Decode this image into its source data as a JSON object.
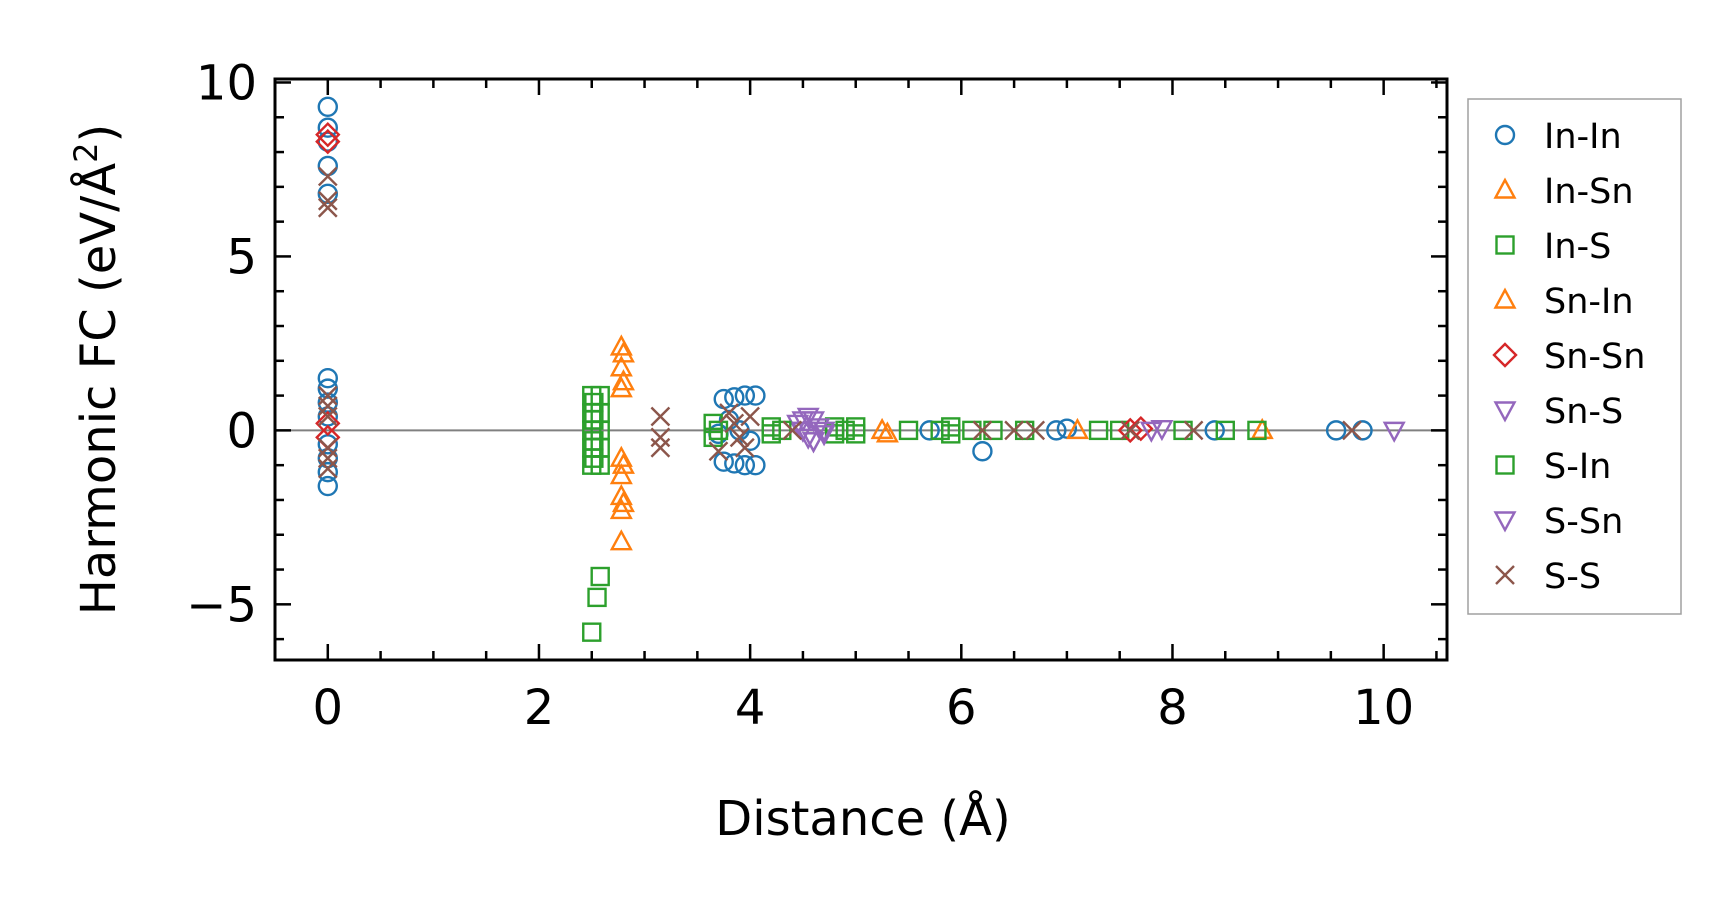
{
  "chart_data": {
    "type": "scatter",
    "title": "",
    "xlabel": "Distance (Å)",
    "ylabel": "Harmonic FC (eV/Å",
    "ylabel_superscript": "2",
    "ylabel_suffix": ")",
    "xlim": [
      -0.5,
      10.6
    ],
    "ylim": [
      -6.6,
      10.1
    ],
    "xticks": [
      0,
      2,
      4,
      6,
      8,
      10
    ],
    "xtick_labels": [
      "0",
      "2",
      "4",
      "6",
      "8",
      "10"
    ],
    "yticks": [
      -5,
      0,
      5,
      10
    ],
    "ytick_labels": [
      "−5",
      "0",
      "5",
      "10"
    ],
    "grid": false,
    "zero_line": true,
    "legend_position": "right-outside",
    "series": [
      {
        "name": "In-In",
        "marker": "circle",
        "color": "#1f77b4",
        "points": [
          [
            0,
            9.3
          ],
          [
            0,
            8.7
          ],
          [
            0,
            8.3
          ],
          [
            0,
            7.6
          ],
          [
            0,
            6.8
          ],
          [
            0,
            1.5
          ],
          [
            0,
            1.2
          ],
          [
            0,
            0.8
          ],
          [
            0,
            0.4
          ],
          [
            0,
            -0.4
          ],
          [
            0,
            -0.8
          ],
          [
            0,
            -1.2
          ],
          [
            0,
            -1.6
          ],
          [
            3.75,
            0.9
          ],
          [
            3.85,
            0.95
          ],
          [
            3.95,
            1.0
          ],
          [
            4.05,
            1.0
          ],
          [
            3.75,
            -0.9
          ],
          [
            3.85,
            -0.95
          ],
          [
            3.95,
            -1.0
          ],
          [
            4.05,
            -1.0
          ],
          [
            3.8,
            0.3
          ],
          [
            3.9,
            0.0
          ],
          [
            4.0,
            -0.3
          ],
          [
            3.7,
            -0.1
          ],
          [
            5.7,
            0.0
          ],
          [
            6.2,
            -0.6
          ],
          [
            6.9,
            0.0
          ],
          [
            7.0,
            0.05
          ],
          [
            8.4,
            0.0
          ],
          [
            9.55,
            0.0
          ],
          [
            9.8,
            0.0
          ]
        ]
      },
      {
        "name": "In-Sn",
        "marker": "triangle-up",
        "color": "#ff7f0e",
        "points": [
          [
            2.78,
            2.4
          ],
          [
            2.78,
            1.8
          ],
          [
            2.78,
            1.2
          ],
          [
            2.78,
            -0.8
          ],
          [
            2.78,
            -1.3
          ],
          [
            2.78,
            -1.9
          ],
          [
            2.78,
            -2.3
          ],
          [
            2.78,
            -3.2
          ],
          [
            5.3,
            -0.1
          ],
          [
            7.1,
            0.0
          ],
          [
            8.85,
            0.0
          ]
        ]
      },
      {
        "name": "In-S",
        "marker": "square",
        "color": "#2ca02c",
        "points": [
          [
            2.5,
            1.0
          ],
          [
            2.5,
            0.5
          ],
          [
            2.5,
            0.0
          ],
          [
            2.5,
            -0.5
          ],
          [
            2.5,
            -1.0
          ],
          [
            2.58,
            1.0
          ],
          [
            2.58,
            0.5
          ],
          [
            2.58,
            0.0
          ],
          [
            2.58,
            -0.5
          ],
          [
            2.58,
            -1.0
          ],
          [
            2.5,
            -5.8
          ],
          [
            2.55,
            -4.8
          ],
          [
            2.58,
            -4.2
          ],
          [
            3.65,
            0.2
          ],
          [
            3.65,
            -0.2
          ],
          [
            4.2,
            0.1
          ],
          [
            4.2,
            -0.1
          ],
          [
            4.8,
            0.1
          ],
          [
            4.8,
            -0.1
          ],
          [
            5.0,
            0.1
          ],
          [
            5.0,
            -0.1
          ],
          [
            5.5,
            0.0
          ],
          [
            5.9,
            0.1
          ],
          [
            5.9,
            -0.1
          ],
          [
            6.1,
            0.0
          ],
          [
            6.6,
            0.0
          ],
          [
            7.3,
            0.0
          ],
          [
            7.5,
            0.0
          ],
          [
            8.1,
            0.0
          ],
          [
            8.5,
            0.0
          ],
          [
            8.8,
            0.0
          ]
        ]
      },
      {
        "name": "Sn-In",
        "marker": "triangle-up",
        "color": "#ff7f0e",
        "points": [
          [
            2.8,
            2.2
          ],
          [
            2.8,
            1.4
          ],
          [
            2.8,
            -1.0
          ],
          [
            2.8,
            -2.1
          ],
          [
            5.25,
            0.0
          ]
        ]
      },
      {
        "name": "Sn-Sn",
        "marker": "diamond",
        "color": "#d62728",
        "points": [
          [
            0,
            8.5
          ],
          [
            0,
            8.3
          ],
          [
            0,
            0.2
          ],
          [
            0,
            -0.2
          ],
          [
            7.6,
            0.0
          ],
          [
            7.7,
            0.05
          ]
        ]
      },
      {
        "name": "Sn-S",
        "marker": "triangle-down",
        "color": "#9467bd",
        "points": [
          [
            4.45,
            0.2
          ],
          [
            4.5,
            0.0
          ],
          [
            4.55,
            -0.2
          ],
          [
            4.6,
            0.3
          ],
          [
            4.65,
            0.1
          ],
          [
            4.7,
            -0.1
          ],
          [
            4.55,
            0.4
          ],
          [
            4.6,
            -0.3
          ],
          [
            7.9,
            0.05
          ],
          [
            10.1,
            0.0
          ]
        ]
      },
      {
        "name": "S-In",
        "marker": "square",
        "color": "#2ca02c",
        "points": [
          [
            2.52,
            0.8
          ],
          [
            2.52,
            0.3
          ],
          [
            2.52,
            -0.3
          ],
          [
            2.52,
            -0.8
          ],
          [
            3.7,
            0.0
          ],
          [
            4.3,
            0.0
          ],
          [
            4.9,
            0.0
          ],
          [
            5.8,
            0.0
          ],
          [
            6.3,
            0.0
          ]
        ]
      },
      {
        "name": "S-Sn",
        "marker": "triangle-down",
        "color": "#9467bd",
        "points": [
          [
            4.5,
            0.3
          ],
          [
            4.6,
            -0.3
          ],
          [
            4.7,
            0.0
          ],
          [
            7.8,
            0.0
          ]
        ]
      },
      {
        "name": "S-S",
        "marker": "cross",
        "color": "#8c564b",
        "points": [
          [
            0,
            7.3
          ],
          [
            0,
            6.6
          ],
          [
            0,
            6.4
          ],
          [
            0,
            1.0
          ],
          [
            0,
            0.7
          ],
          [
            0,
            0.4
          ],
          [
            0,
            -0.5
          ],
          [
            0,
            -0.8
          ],
          [
            0,
            -1.1
          ],
          [
            3.15,
            0.4
          ],
          [
            3.15,
            -0.2
          ],
          [
            3.15,
            -0.5
          ],
          [
            3.8,
            0.5
          ],
          [
            3.85,
            0.2
          ],
          [
            3.9,
            -0.2
          ],
          [
            3.95,
            -0.5
          ],
          [
            3.7,
            -0.6
          ],
          [
            4.0,
            0.4
          ],
          [
            4.4,
            0.0
          ],
          [
            6.2,
            0.0
          ],
          [
            6.5,
            0.0
          ],
          [
            6.7,
            0.0
          ],
          [
            7.6,
            0.0
          ],
          [
            8.2,
            0.0
          ],
          [
            9.7,
            0.0
          ]
        ]
      }
    ]
  }
}
